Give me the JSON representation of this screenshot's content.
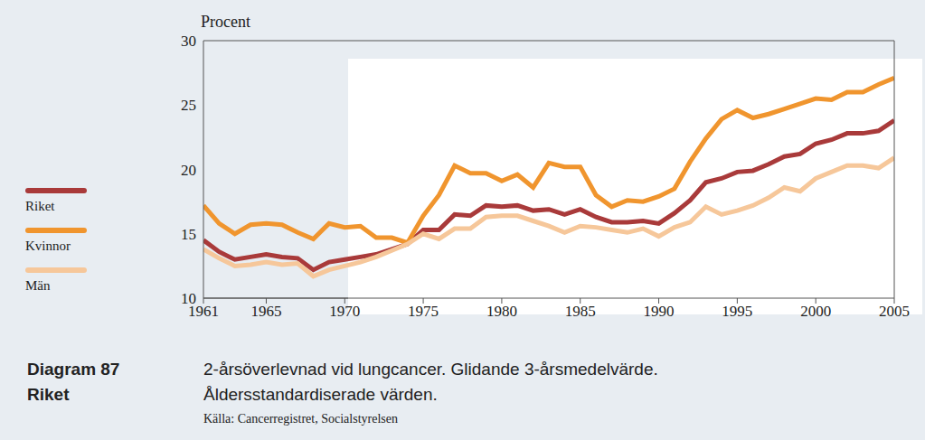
{
  "chart_data": {
    "type": "line",
    "title": "2-årsöverlevnad vid lungcancer. Glidande 3-årsmedelvärde.",
    "subtitle": "Åldersstandardiserade värden.",
    "y_label": "Procent",
    "annotations": [
      "Diagram 87",
      "Riket",
      "Källa: Cancerregistret, Socialstyrelsen"
    ],
    "x": [
      1961,
      1962,
      1963,
      1964,
      1965,
      1966,
      1967,
      1968,
      1969,
      1970,
      1971,
      1972,
      1973,
      1974,
      1975,
      1976,
      1977,
      1978,
      1979,
      1980,
      1981,
      1982,
      1983,
      1984,
      1985,
      1986,
      1987,
      1988,
      1989,
      1990,
      1991,
      1992,
      1993,
      1994,
      1995,
      1996,
      1997,
      1998,
      1999,
      2000,
      2001,
      2002,
      2003,
      2004,
      2005
    ],
    "series": [
      {
        "name": "Riket",
        "color": "#a93a3a",
        "values": [
          14.5,
          13.6,
          13.0,
          13.2,
          13.4,
          13.2,
          13.1,
          12.2,
          12.8,
          13.0,
          13.2,
          13.4,
          13.8,
          14.2,
          15.3,
          15.3,
          16.5,
          16.4,
          17.2,
          17.1,
          17.2,
          16.8,
          16.9,
          16.5,
          16.9,
          16.3,
          15.9,
          15.9,
          16.0,
          15.8,
          16.6,
          17.6,
          19.0,
          19.3,
          19.8,
          19.9,
          20.4,
          21.0,
          21.2,
          22.0,
          22.3,
          22.8,
          22.8,
          23.0,
          23.8
        ]
      },
      {
        "name": "Kvinnor",
        "color": "#f0952e",
        "values": [
          17.2,
          15.8,
          15.0,
          15.7,
          15.8,
          15.7,
          15.1,
          14.6,
          15.8,
          15.5,
          15.6,
          14.7,
          14.7,
          14.3,
          16.4,
          18.0,
          20.3,
          19.7,
          19.7,
          19.1,
          19.6,
          18.6,
          20.5,
          20.2,
          20.2,
          18.0,
          17.1,
          17.6,
          17.5,
          17.9,
          18.5,
          20.6,
          22.4,
          23.9,
          24.6,
          24.0,
          24.3,
          24.7,
          25.1,
          25.5,
          25.4,
          26.0,
          26.0,
          26.6,
          27.1
        ]
      },
      {
        "name": "Män",
        "color": "#f6c79a",
        "values": [
          13.8,
          13.1,
          12.5,
          12.6,
          12.8,
          12.6,
          12.7,
          11.7,
          12.2,
          12.5,
          12.8,
          13.2,
          13.7,
          14.2,
          15.0,
          14.6,
          15.4,
          15.4,
          16.3,
          16.4,
          16.4,
          16.0,
          15.6,
          15.1,
          15.6,
          15.5,
          15.3,
          15.1,
          15.4,
          14.8,
          15.5,
          15.9,
          17.1,
          16.5,
          16.8,
          17.2,
          17.8,
          18.6,
          18.3,
          19.3,
          19.8,
          20.3,
          20.3,
          20.1,
          20.9
        ]
      }
    ],
    "xlim": [
      1961,
      2005
    ],
    "xticks": [
      1961,
      1965,
      1970,
      1975,
      1980,
      1985,
      1990,
      1995,
      2000,
      2005
    ],
    "ylim": [
      10,
      30
    ],
    "yticks": [
      10,
      15,
      20,
      25,
      30
    ],
    "grid": true,
    "legend": "left"
  }
}
